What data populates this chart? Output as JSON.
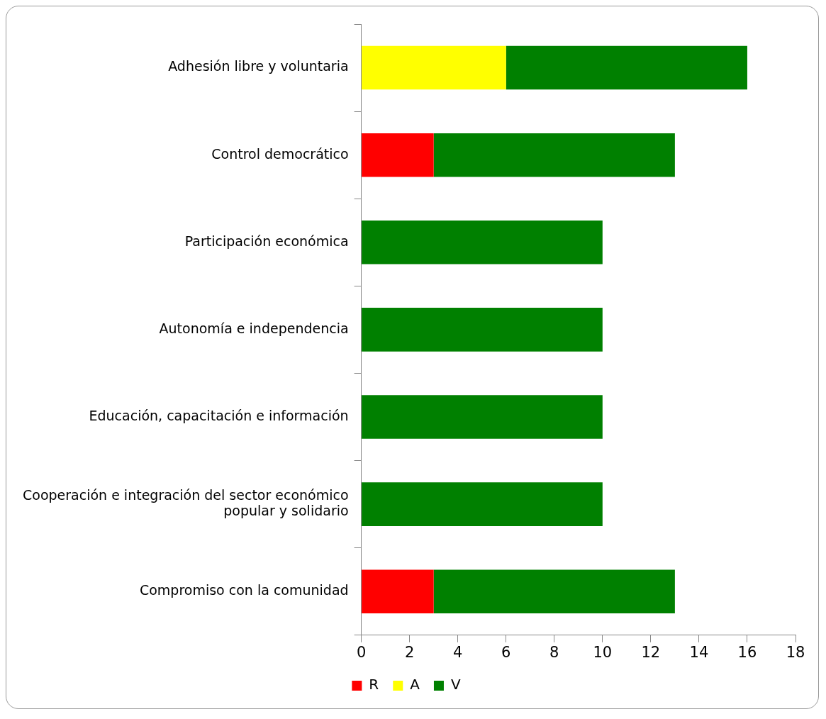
{
  "chart_data": {
    "type": "bar",
    "orientation": "horizontal",
    "stacked": true,
    "categories": [
      "Adhesión libre y voluntaria",
      "Control democrático",
      "Participación económica",
      "Autonomía e independencia",
      "Educación, capacitación e información",
      "Cooperación e integración del sector económico popular y solidario",
      "Compromiso con la comunidad"
    ],
    "series": [
      {
        "name": "R",
        "color": "#ff0000",
        "values": [
          null,
          3,
          null,
          null,
          null,
          null,
          3
        ]
      },
      {
        "name": "A",
        "color": "#ffff00",
        "values": [
          6,
          null,
          null,
          null,
          null,
          null,
          null
        ]
      },
      {
        "name": "V",
        "color": "#008000",
        "values": [
          10,
          10,
          10,
          10,
          10,
          10,
          10
        ]
      }
    ],
    "xlim": [
      0,
      18
    ],
    "xticks": [
      0,
      2,
      4,
      6,
      8,
      10,
      12,
      14,
      16,
      18
    ],
    "grid": false,
    "legend": "bottom"
  }
}
